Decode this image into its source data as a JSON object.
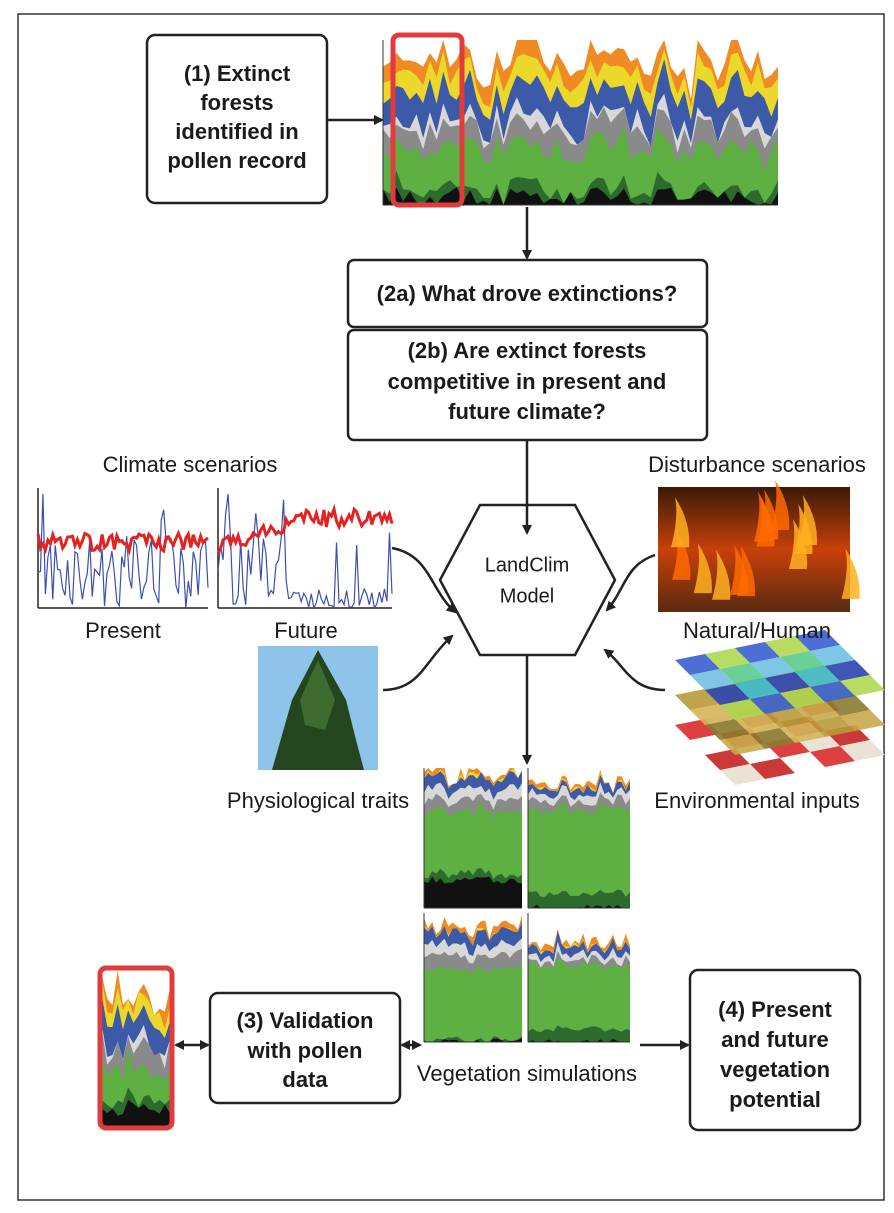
{
  "nodes": {
    "pollen_record": {
      "lines": [
        "(1) Extinct",
        "forests",
        "identified in",
        "pollen record"
      ]
    },
    "question_2a": {
      "label": "(2a) What drove extinctions?"
    },
    "question_2b": {
      "lines": [
        "(2b) Are extinct forests",
        "competitive in present and",
        "future climate?"
      ]
    },
    "climate": {
      "title": "Climate scenarios",
      "present": "Present",
      "future": "Future"
    },
    "disturbance": {
      "title": "Disturbance scenarios",
      "caption": "Natural/Human"
    },
    "model": {
      "lines": [
        "LandClim",
        "Model"
      ]
    },
    "traits": {
      "caption": "Physiological traits"
    },
    "environment": {
      "caption": "Environmental inputs"
    },
    "simulations": {
      "caption": "Vegetation simulations"
    },
    "validation": {
      "lines": [
        "(3) Validation",
        "with pollen",
        "data"
      ]
    },
    "potential": {
      "lines": [
        "(4) Present",
        "and future",
        "vegetation",
        "potential"
      ]
    }
  }
}
